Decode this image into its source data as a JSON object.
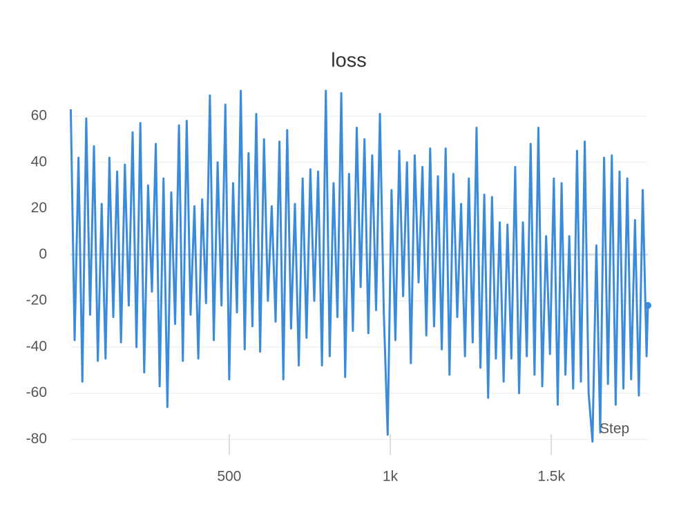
{
  "chart_data": {
    "type": "line",
    "title": "loss",
    "x_label": "Step",
    "color": "#3a8bd9",
    "grid": true,
    "xlim": [
      7,
      1800
    ],
    "xticks": [
      500,
      {
        "value": 1000,
        "label": "1k"
      },
      {
        "value": 1500,
        "label": "1.5k"
      }
    ],
    "ylim": [
      -82,
      72
    ],
    "yticks": [
      -80,
      -60,
      -40,
      -20,
      0,
      20,
      40,
      60
    ],
    "x": [
      8,
      20,
      32,
      44,
      56,
      68,
      80,
      92,
      104,
      116,
      128,
      140,
      152,
      164,
      176,
      188,
      200,
      212,
      224,
      236,
      248,
      260,
      272,
      284,
      296,
      308,
      320,
      332,
      344,
      356,
      368,
      380,
      392,
      404,
      416,
      428,
      440,
      452,
      464,
      476,
      488,
      500,
      512,
      524,
      536,
      548,
      560,
      572,
      584,
      596,
      608,
      620,
      632,
      644,
      656,
      668,
      680,
      692,
      704,
      716,
      728,
      740,
      752,
      764,
      776,
      788,
      800,
      812,
      824,
      836,
      848,
      860,
      872,
      884,
      896,
      908,
      920,
      932,
      944,
      956,
      968,
      980,
      992,
      1004,
      1016,
      1028,
      1040,
      1052,
      1064,
      1076,
      1088,
      1100,
      1112,
      1124,
      1136,
      1148,
      1160,
      1172,
      1184,
      1196,
      1208,
      1220,
      1232,
      1244,
      1256,
      1268,
      1280,
      1292,
      1304,
      1316,
      1328,
      1340,
      1352,
      1364,
      1376,
      1388,
      1400,
      1412,
      1424,
      1436,
      1448,
      1460,
      1472,
      1484,
      1496,
      1508,
      1520,
      1532,
      1544,
      1556,
      1568,
      1580,
      1592,
      1604,
      1616,
      1628,
      1640,
      1652,
      1664,
      1676,
      1688,
      1700,
      1712,
      1724,
      1736,
      1748,
      1760,
      1772,
      1784,
      1796,
      1800
    ],
    "values": [
      63,
      -37,
      42,
      -55,
      59,
      -26,
      47,
      -46,
      22,
      -45,
      42,
      -27,
      36,
      -38,
      39,
      -22,
      53,
      -40,
      57,
      -51,
      30,
      -16,
      48,
      -57,
      33,
      -66,
      27,
      -30,
      56,
      -46,
      58,
      -26,
      21,
      -45,
      24,
      -21,
      69,
      -37,
      40,
      -22,
      65,
      -54,
      31,
      -25,
      71,
      -41,
      44,
      -31,
      61,
      -42,
      50,
      -20,
      21,
      -29,
      49,
      -54,
      54,
      -32,
      22,
      -48,
      33,
      -36,
      37,
      -20,
      36,
      -48,
      71,
      -44,
      31,
      -27,
      70,
      -53,
      35,
      -33,
      55,
      -14,
      50,
      -34,
      43,
      -24,
      61,
      -25,
      -78,
      28,
      -37,
      45,
      -18,
      40,
      -47,
      43,
      -12,
      38,
      -35,
      46,
      -31,
      34,
      -41,
      46,
      -52,
      35,
      -27,
      22,
      -44,
      33,
      -38,
      55,
      -49,
      26,
      -62,
      25,
      -45,
      14,
      -55,
      13,
      -45,
      38,
      -60,
      14,
      -44,
      48,
      -52,
      55,
      -57,
      8,
      -43,
      33,
      -65,
      31,
      -52,
      8,
      -58,
      45,
      -55,
      49,
      -60,
      -81,
      4,
      -77,
      42,
      -56,
      43,
      -65,
      36,
      -58,
      33,
      -54,
      15,
      -61,
      28,
      -44,
      -22
    ]
  }
}
